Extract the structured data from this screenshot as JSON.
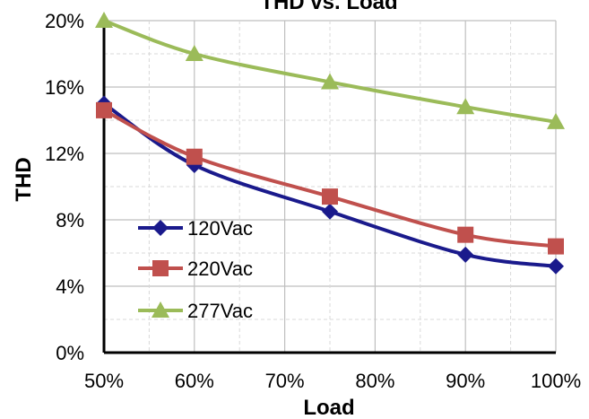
{
  "chart_data": {
    "type": "line",
    "title": "THD vs. Load",
    "xlabel": "Load",
    "ylabel": "THD",
    "x": [
      50,
      60,
      75,
      90,
      100
    ],
    "x_tick_labels": [
      "50%",
      "60%",
      "70%",
      "80%",
      "90%",
      "100%"
    ],
    "y_tick_labels": [
      "0%",
      "4%",
      "8%",
      "12%",
      "16%",
      "20%"
    ],
    "xlim": [
      50,
      100
    ],
    "ylim": [
      0,
      20
    ],
    "grid": true,
    "legend_position": "left",
    "series": [
      {
        "name": "120Vac",
        "values": [
          15.0,
          11.3,
          8.5,
          5.9,
          5.2
        ],
        "color": "#1a1a8c",
        "marker": "diamond"
      },
      {
        "name": "220Vac",
        "values": [
          14.6,
          11.8,
          9.4,
          7.1,
          6.4
        ],
        "color": "#c0504d",
        "marker": "square"
      },
      {
        "name": "277Vac",
        "values": [
          20.0,
          18.0,
          16.3,
          14.8,
          13.9
        ],
        "color": "#9bbb59",
        "marker": "triangle"
      }
    ]
  }
}
